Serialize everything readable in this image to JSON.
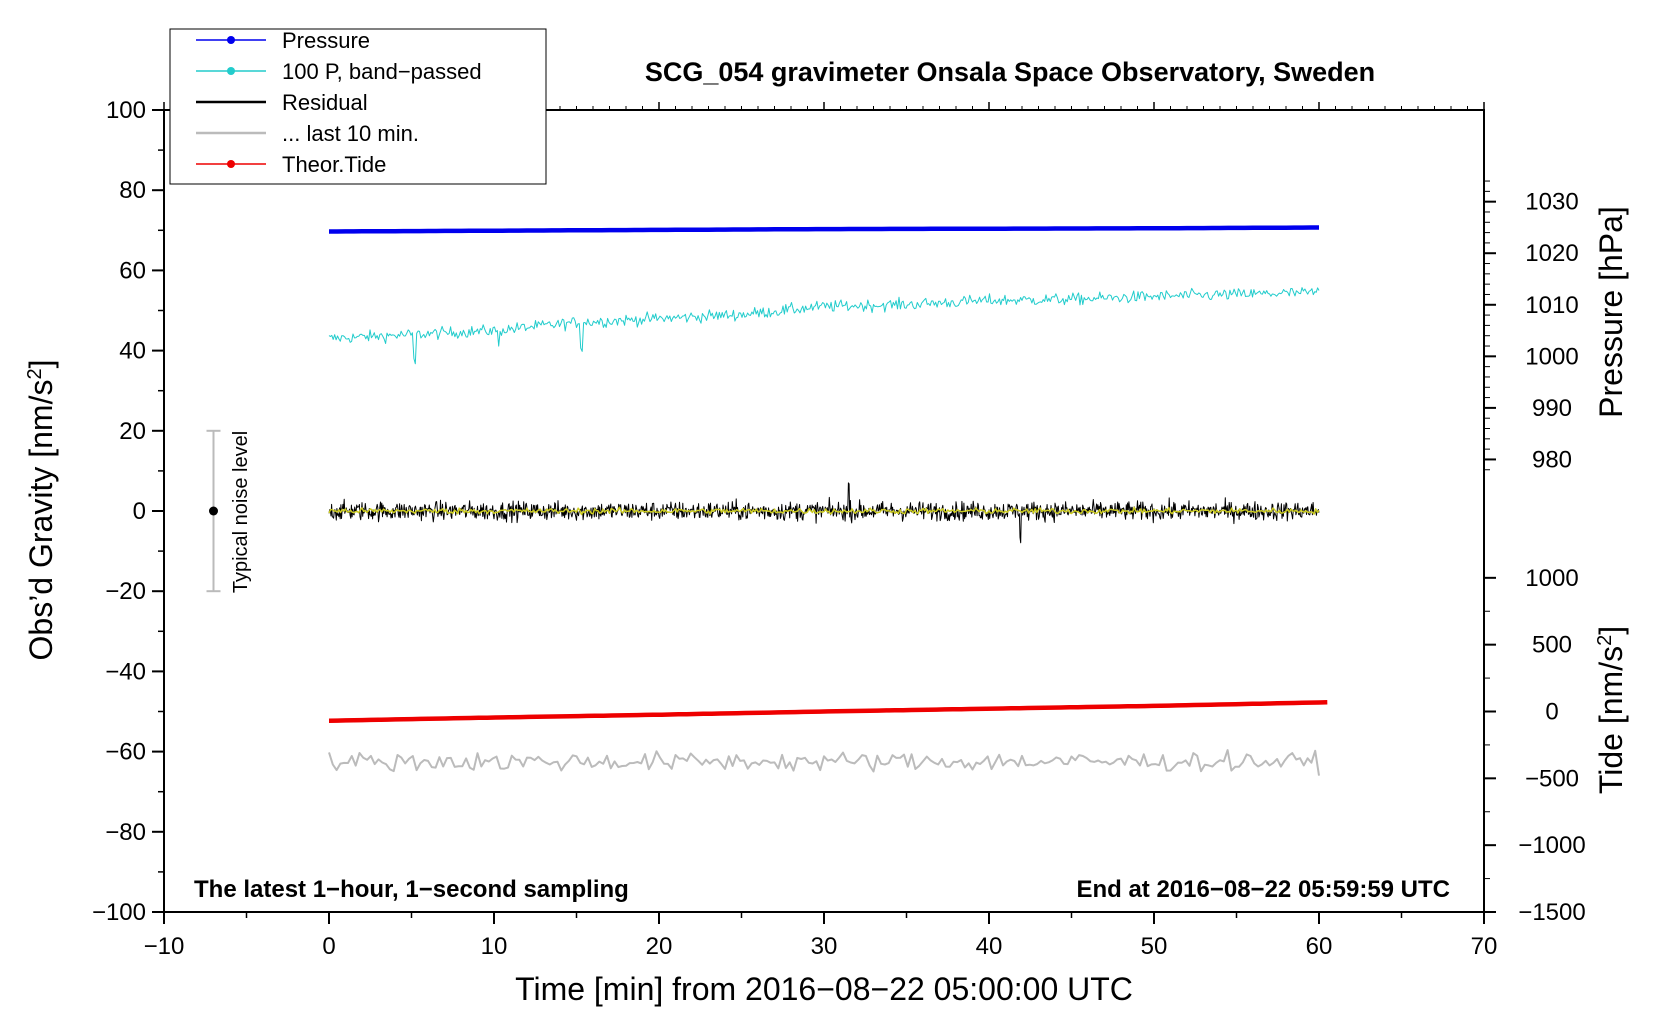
{
  "chart_data": {
    "type": "line",
    "title": "SCG_054 gravimeter Onsala Space Observatory, Sweden",
    "xlabel": "Time [min] from 2016−08−22 05:00:00 UTC",
    "ylabel_main": "Obs’d Gravity [nm/s",
    "ylabel_main_sup": "2",
    "ylabel_main_end": "]",
    "ylabel_pressure": "Pressure [hPa]",
    "ylabel_tide": "Tide [nm/s",
    "ylabel_tide_sup": "2",
    "ylabel_tide_end": "]",
    "xlim": [
      -10,
      70
    ],
    "ylim": [
      -100,
      100
    ],
    "x_ticks": [
      "−10",
      "0",
      "10",
      "20",
      "30",
      "40",
      "50",
      "60",
      "70"
    ],
    "x_tick_values": [
      -10,
      0,
      10,
      20,
      30,
      40,
      50,
      60,
      70
    ],
    "y_ticks": [
      "100",
      "80",
      "60",
      "40",
      "20",
      "0",
      "−20",
      "−40",
      "−60",
      "−80",
      "−100"
    ],
    "y_tick_values": [
      100,
      80,
      60,
      40,
      20,
      0,
      -20,
      -40,
      -60,
      -80,
      -100
    ],
    "pressure_ticks": [
      "1030",
      "1020",
      "1010",
      "1000",
      "990",
      "980"
    ],
    "pressure_tick_values": [
      1030,
      1020,
      1010,
      1000,
      990,
      980
    ],
    "pressure_axis_map": {
      "value_at_y0": 970,
      "units_per_main": 0.7778
    },
    "tide_ticks": [
      "1000",
      "500",
      "0",
      "−500",
      "−1000",
      "−1500"
    ],
    "tide_tick_values": [
      1000,
      500,
      0,
      -500,
      -1000,
      -1500
    ],
    "tide_axis_map": {
      "value_at_ym50": 0,
      "units_per_main": 30
    },
    "legend": [
      {
        "label": "Pressure",
        "color": "#0000ee",
        "marker": true
      },
      {
        "label": "100 P, band−passed",
        "color": "#22cccc",
        "marker": true
      },
      {
        "label": "Residual",
        "color": "#000000",
        "marker": false
      },
      {
        "label": "... last 10 min.",
        "color": "#bbbbbb",
        "marker": false
      },
      {
        "label": "Theor.Tide",
        "color": "#ee0000",
        "marker": true
      }
    ],
    "noise_label": "Typical noise level",
    "noise_bar": {
      "x": -7,
      "center": 0,
      "half_range": 20
    },
    "note_left": "The latest 1−hour, 1−second sampling",
    "note_right": "End at 2016−08−22 05:59:59 UTC",
    "series": [
      {
        "name": "Pressure",
        "color": "#0000ee",
        "x": [
          0,
          10,
          20,
          30,
          40,
          50,
          60
        ],
        "values": [
          69.7,
          69.9,
          70.1,
          70.3,
          70.4,
          70.5,
          70.7
        ]
      },
      {
        "name": "100 P, band-passed",
        "color": "#22cccc",
        "x": [
          0,
          5,
          10,
          15,
          20,
          25,
          30,
          35,
          40,
          45,
          50,
          55,
          60
        ],
        "values": [
          43,
          44,
          45,
          47,
          48,
          49,
          51,
          51.5,
          52.5,
          52.8,
          53.5,
          54,
          54.5
        ],
        "amplitude": 2.5
      },
      {
        "name": "Residual",
        "color": "#000000",
        "x": [
          0,
          60
        ],
        "values": [
          0,
          0
        ],
        "amplitude": 4
      },
      {
        "name": "Residual smoothed",
        "color": "#cccc22",
        "x": [
          0,
          60
        ],
        "values": [
          0,
          0
        ],
        "amplitude": 1.2
      },
      {
        "name": "Theor.Tide",
        "color": "#ee0000",
        "x": [
          0,
          10,
          20,
          30,
          40,
          50,
          60.5
        ],
        "values": [
          -52.3,
          -51.5,
          -50.8,
          -50,
          -49.3,
          -48.6,
          -47.7
        ]
      },
      {
        "name": "... last 10 min.",
        "color": "#bbbbbb",
        "x": [
          0,
          60
        ],
        "values": [
          -62.5,
          -62.5
        ],
        "amplitude": 4
      }
    ]
  }
}
